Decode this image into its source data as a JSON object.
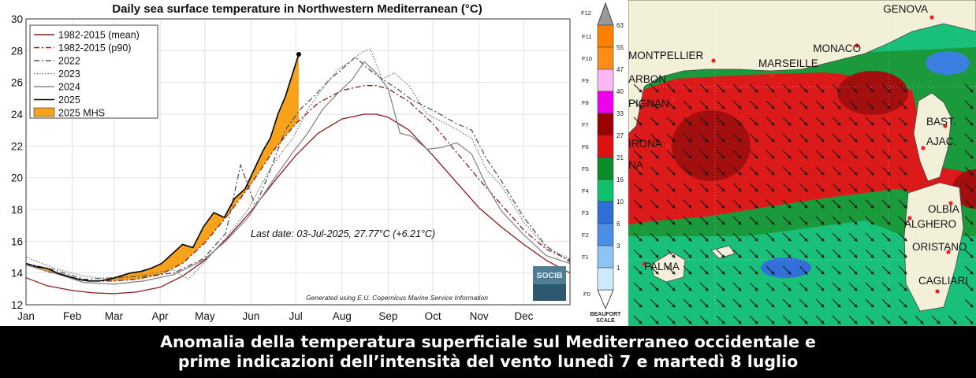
{
  "chart_data": {
    "type": "line",
    "title": "Daily sea surface temperature in Northwestern Mediterranean (°C)",
    "xlabel": "",
    "ylabel": "",
    "ylim": [
      12,
      30
    ],
    "yticks": [
      12,
      14,
      16,
      18,
      20,
      22,
      24,
      26,
      28,
      30
    ],
    "xlim": [
      1,
      366
    ],
    "month_ticks": [
      "Jan",
      "Feb",
      "Mar",
      "Apr",
      "May",
      "Jun",
      "Jul",
      "Aug",
      "Sep",
      "Oct",
      "Nov",
      "Dec"
    ],
    "grid": true,
    "legend_position": "top-left",
    "annotation": "Last date: 03-Jul-2025, 27.77°C (+6.21°C)",
    "credit": "Generated using E.U. Copernicus Marine Service Information",
    "logo_text": "SOCIB",
    "series": [
      {
        "name": "1982-2015 (mean)",
        "color": "#8b1a1a",
        "style": "solid",
        "x": [
          1,
          15,
          32,
          46,
          60,
          75,
          91,
          106,
          121,
          136,
          152,
          167,
          182,
          197,
          213,
          228,
          236,
          244,
          258,
          274,
          289,
          305,
          320,
          335,
          350,
          366
        ],
        "y": [
          13.7,
          13.2,
          12.9,
          12.75,
          12.7,
          12.8,
          13.1,
          13.8,
          14.8,
          16.2,
          17.9,
          19.7,
          21.4,
          22.8,
          23.7,
          24.0,
          24.0,
          23.8,
          23.0,
          21.4,
          19.8,
          18.1,
          16.9,
          15.8,
          14.8,
          14.0
        ]
      },
      {
        "name": "1982-2015 (p90)",
        "color": "#8b1a1a",
        "style": "dashdot",
        "x": [
          1,
          15,
          32,
          46,
          60,
          75,
          91,
          106,
          121,
          136,
          152,
          167,
          182,
          197,
          213,
          228,
          236,
          244,
          258,
          274,
          289,
          305,
          320,
          335,
          350,
          366
        ],
        "y": [
          14.6,
          14.1,
          13.7,
          13.5,
          13.5,
          13.6,
          13.9,
          14.6,
          15.9,
          17.6,
          19.6,
          21.7,
          23.4,
          24.7,
          25.5,
          25.8,
          25.8,
          25.6,
          24.8,
          23.4,
          21.7,
          19.9,
          18.3,
          16.7,
          15.5,
          14.8
        ]
      },
      {
        "name": "2022",
        "color": "#555555",
        "style": "dashdot",
        "x": [
          1,
          20,
          40,
          60,
          80,
          100,
          120,
          135,
          145,
          155,
          165,
          175,
          185,
          195,
          205,
          215,
          222,
          230,
          240,
          250,
          260,
          275,
          290,
          300,
          310,
          320,
          335,
          350,
          366
        ],
        "y": [
          14.6,
          14.2,
          13.6,
          13.7,
          13.8,
          14.0,
          14.9,
          16.5,
          20.8,
          18.2,
          20.5,
          23.0,
          24.3,
          25.2,
          26.2,
          27.0,
          27.6,
          26.9,
          26.2,
          25.6,
          24.9,
          24.2,
          23.4,
          23.0,
          21.2,
          19.8,
          17.5,
          15.7,
          14.7
        ]
      },
      {
        "name": "2023",
        "color": "#777777",
        "style": "dotted",
        "x": [
          1,
          20,
          40,
          60,
          80,
          100,
          110,
          120,
          135,
          150,
          165,
          180,
          190,
          200,
          210,
          220,
          226,
          232,
          240,
          248,
          258,
          270,
          285,
          300,
          310,
          320,
          335,
          350,
          366
        ],
        "y": [
          15.0,
          14.3,
          13.8,
          13.6,
          13.9,
          14.2,
          13.6,
          14.6,
          16.2,
          18.0,
          20.6,
          22.5,
          24.3,
          25.6,
          26.8,
          27.4,
          27.9,
          28.1,
          26.2,
          26.6,
          25.8,
          24.0,
          23.3,
          22.5,
          20.5,
          19.5,
          17.2,
          15.6,
          14.9
        ]
      },
      {
        "name": "2024",
        "color": "#888888",
        "style": "solid",
        "x": [
          1,
          20,
          40,
          60,
          80,
          100,
          120,
          135,
          150,
          165,
          180,
          190,
          200,
          210,
          220,
          228,
          236,
          244,
          252,
          260,
          270,
          280,
          290,
          300,
          310,
          320,
          335,
          350,
          366
        ],
        "y": [
          14.5,
          14.0,
          13.4,
          13.3,
          13.5,
          13.9,
          14.8,
          16.0,
          17.5,
          19.6,
          21.6,
          22.8,
          24.3,
          25.3,
          26.2,
          27.3,
          26.6,
          25.6,
          22.8,
          22.6,
          21.8,
          21.9,
          22.2,
          21.5,
          19.5,
          17.9,
          16.4,
          15.1,
          14.6
        ]
      },
      {
        "name": "2025",
        "color": "#000000",
        "style": "solid",
        "x": [
          1,
          8,
          15,
          22,
          29,
          36,
          43,
          50,
          57,
          64,
          71,
          78,
          85,
          92,
          99,
          106,
          113,
          120,
          127,
          134,
          141,
          148,
          155,
          160,
          165,
          170,
          175,
          180,
          184
        ],
        "y": [
          14.6,
          14.4,
          14.3,
          14.0,
          13.8,
          13.6,
          13.5,
          13.5,
          13.6,
          13.8,
          14.0,
          14.1,
          14.3,
          14.6,
          15.2,
          15.8,
          15.6,
          16.9,
          17.8,
          17.5,
          18.7,
          19.3,
          20.7,
          21.7,
          22.5,
          24.0,
          25.1,
          26.6,
          27.77
        ]
      },
      {
        "name": "2025 MHS",
        "color": "#f7a21b",
        "style": "fill",
        "x": [],
        "y": []
      }
    ]
  },
  "scale": {
    "top_label": "F12",
    "bottom_label": "F0",
    "title": "BEAUFORT SCALE",
    "force_labels": [
      "F11",
      "F10",
      "F9",
      "F8",
      "F7",
      "F6",
      "F5",
      "F4",
      "F3",
      "F2",
      "F1"
    ],
    "speed_labels": [
      "63",
      "55",
      "47",
      "40",
      "33",
      "27",
      "21",
      "16",
      "10",
      "6",
      "3",
      "1"
    ],
    "colors": [
      "#ff8000",
      "#ff8c1a",
      "#ffb6f5",
      "#ee00ee",
      "#990000",
      "#dd1111",
      "#0a8c2a",
      "#0fbf6a",
      "#2f6fd6",
      "#4a8ee8",
      "#8cc4f4",
      "#cfe9fb"
    ]
  },
  "map": {
    "cities": [
      "GENOVA",
      "MONACO",
      "MONTPELLIER",
      "MARSEILLE",
      "ARBON",
      "PIGNAN",
      "BAST.",
      "AJAC.",
      "IRONA",
      "NA",
      "OLBIA",
      "ALGHERO",
      "ORISTANO",
      "PALMA",
      "CAGLIARI"
    ]
  },
  "caption": {
    "line1": "Anomalia della temperatura superficiale sul Mediterraneo occidentale e",
    "line2": "prime indicazioni dell’intensità del vento lunedì 7 e martedì 8 luglio"
  }
}
